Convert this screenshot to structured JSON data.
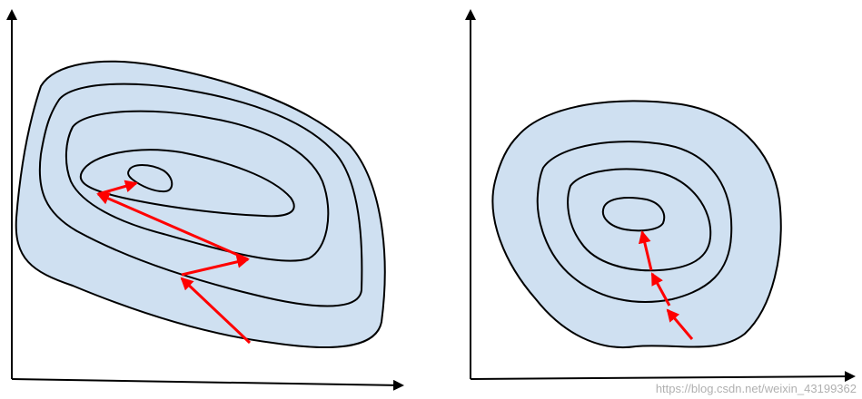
{
  "colors": {
    "contour_fill": "#cfe0f1",
    "contour_stroke": "#000000",
    "axis": "#000000",
    "path_arrow": "#ff0000"
  },
  "panels": [
    {
      "id": "left",
      "description_tag": "elongated-contours",
      "contour_count": 5,
      "arrow_steps": 4
    },
    {
      "id": "right",
      "description_tag": "circular-contours",
      "contour_count": 4,
      "arrow_steps": 3
    }
  ],
  "watermark": "https://blog.csdn.net/weixin_43199362"
}
